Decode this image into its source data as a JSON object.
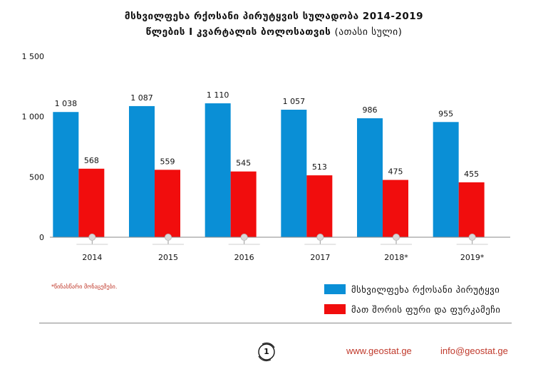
{
  "header": {
    "title_line1": "მსხვილფეხა რქოსანი პირუტყვის სულადობა 2014-2019",
    "title_line2": "წლების I კვარტალის ბოლოსათვის",
    "title_unit": "(ათასი სული)"
  },
  "chart_data": {
    "type": "bar",
    "categories": [
      "2014",
      "2015",
      "2016",
      "2017",
      "2018*",
      "2019*"
    ],
    "series": [
      {
        "name": "მსხვილფეხა რქოსანი პირუტყვი",
        "color": "#0a8fd6",
        "values": [
          1038,
          1087,
          1110,
          1057,
          986,
          955
        ],
        "labels": [
          "1 038",
          "1 087",
          "1 110",
          "1 057",
          "986",
          "955"
        ]
      },
      {
        "name": "მათ შორის ფური და ფურკამეჩი",
        "color": "#f10d0d",
        "values": [
          568,
          559,
          545,
          513,
          475,
          455
        ],
        "labels": [
          "568",
          "559",
          "545",
          "513",
          "475",
          "455"
        ]
      }
    ],
    "ylim": [
      0,
      1500
    ],
    "yticks": [
      0,
      500,
      1000,
      1500
    ],
    "ytick_labels": [
      "0",
      "500",
      "1 000",
      "1 500"
    ],
    "grid": false,
    "legend_position": "bottom-right"
  },
  "note": "*წინასწარი მონაცემები.",
  "footer": {
    "page_number": "1",
    "website": "www.geostat.ge",
    "email": "info@geostat.ge"
  }
}
